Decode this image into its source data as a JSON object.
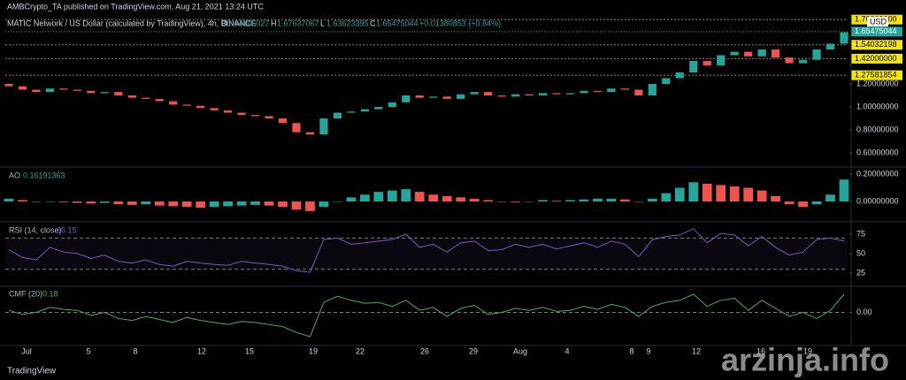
{
  "chart_data": {
    "type": "candlestick",
    "publisher": "AMBCrypto_TA published on TradingView.com, Aug 21, 2021 13:24 UTC",
    "symbol": "MATIC Network / US Dollar (calculated by TradingView), 4h, BINANCE",
    "ohlc_labels": [
      "O",
      "H",
      "L",
      "C"
    ],
    "ohlc_values": [
      "1.64145027",
      "1.67637067",
      "1.63623395",
      "1.65475044"
    ],
    "change": "+0.01380853 (+0.84%)",
    "currency": "USD",
    "x_labels": [
      "Jul",
      "5",
      "8",
      "12",
      "15",
      "19",
      "22",
      "26",
      "29",
      "Aug",
      "4",
      "8",
      "9",
      "12",
      "16",
      "19"
    ],
    "price": {
      "open": 1.2,
      "values": [
        1.18,
        1.15,
        1.13,
        1.16,
        1.15,
        1.14,
        1.12,
        1.13,
        1.1,
        1.08,
        1.07,
        1.05,
        1.02,
        1.01,
        0.99,
        0.97,
        0.95,
        0.93,
        0.92,
        0.9,
        0.86,
        0.78,
        0.76,
        0.9,
        0.95,
        0.96,
        0.98,
        1.0,
        1.04,
        1.1,
        1.08,
        1.09,
        1.07,
        1.11,
        1.13,
        1.1,
        1.09,
        1.11,
        1.1,
        1.12,
        1.11,
        1.12,
        1.14,
        1.13,
        1.16,
        1.15,
        1.1,
        1.2,
        1.25,
        1.3,
        1.4,
        1.36,
        1.45,
        1.48,
        1.44,
        1.5,
        1.43,
        1.38,
        1.41,
        1.5,
        1.55,
        1.65
      ],
      "up_color": "#26a69a",
      "down_color": "#ef5350",
      "ylim": [
        0.485,
        1.792
      ],
      "yticks": [
        {
          "value": 1.2,
          "label": "1.20000000"
        },
        {
          "value": 1.0,
          "label": "1.00000000"
        },
        {
          "value": 0.8,
          "label": "0.80000000"
        },
        {
          "value": 0.6,
          "label": "0.60000000"
        }
      ],
      "levels": [
        {
          "value": 1.76,
          "label": "1.76000000"
        },
        {
          "value": 1.54032198,
          "label": "1.54032198"
        },
        {
          "value": 1.42,
          "label": "1.42000000"
        },
        {
          "value": 1.27581854,
          "label": "1.27581854"
        }
      ],
      "level_color": "#f5e50a",
      "last": {
        "value": 1.65475044,
        "label": "1.65475044"
      }
    },
    "ao": {
      "name": "AO",
      "value_label": "0.16191363",
      "values": [
        0.02,
        0.01,
        0.0,
        0.0,
        -0.005,
        -0.01,
        -0.015,
        -0.01,
        -0.02,
        -0.025,
        -0.02,
        -0.03,
        -0.035,
        -0.04,
        -0.045,
        -0.04,
        -0.035,
        -0.03,
        -0.025,
        -0.03,
        -0.04,
        -0.06,
        -0.07,
        -0.04,
        0.0,
        0.03,
        0.05,
        0.07,
        0.08,
        0.09,
        0.07,
        0.05,
        0.04,
        0.03,
        0.02,
        0.01,
        0.0,
        -0.005,
        0.0,
        0.01,
        0.005,
        0.01,
        0.015,
        0.02,
        0.02,
        0.015,
        0.0,
        0.02,
        0.06,
        0.1,
        0.14,
        0.13,
        0.12,
        0.11,
        0.1,
        0.08,
        0.04,
        -0.02,
        -0.04,
        -0.02,
        0.05,
        0.16
      ],
      "up_color": "#26a69a",
      "down_color": "#ef5350",
      "ylim": [
        -0.142,
        0.245
      ],
      "yticks": [
        {
          "value": 0.2,
          "label": "0.20000000"
        },
        {
          "value": 0.0,
          "label": "0.00000000"
        }
      ]
    },
    "rsi": {
      "name": "RSI (14, close)",
      "value_label": "66.15",
      "color": "#7e57c2",
      "values": [
        55,
        45,
        42,
        58,
        52,
        50,
        44,
        48,
        40,
        38,
        42,
        36,
        34,
        40,
        38,
        36,
        35,
        40,
        38,
        36,
        34,
        28,
        26,
        68,
        70,
        62,
        64,
        66,
        68,
        75,
        58,
        62,
        52,
        64,
        66,
        54,
        55,
        62,
        58,
        62,
        56,
        60,
        64,
        58,
        66,
        62,
        46,
        68,
        72,
        74,
        82,
        64,
        76,
        74,
        60,
        72,
        58,
        48,
        52,
        68,
        70,
        66.15
      ],
      "ylim": [
        9.1,
        88.6
      ],
      "yticks": [
        75,
        50,
        25
      ],
      "band": [
        70,
        30
      ]
    },
    "cmf": {
      "name": "CMF (20)",
      "value_label": "0.18",
      "color": "#4caf50",
      "values": [
        0.02,
        -0.02,
        0.0,
        0.05,
        0.03,
        0.02,
        -0.03,
        0.0,
        -0.06,
        -0.08,
        -0.04,
        -0.07,
        -0.1,
        -0.05,
        -0.08,
        -0.1,
        -0.12,
        -0.09,
        -0.1,
        -0.12,
        -0.14,
        -0.2,
        -0.24,
        0.1,
        0.16,
        0.12,
        0.09,
        0.1,
        0.06,
        0.12,
        0.02,
        0.05,
        -0.04,
        0.04,
        0.07,
        -0.02,
        0.0,
        0.04,
        0.02,
        0.05,
        0.01,
        0.02,
        0.06,
        0.03,
        0.08,
        0.05,
        -0.04,
        0.06,
        0.1,
        0.12,
        0.18,
        0.06,
        0.12,
        0.14,
        0.02,
        0.12,
        0.04,
        -0.04,
        0.0,
        -0.06,
        0.02,
        0.18
      ],
      "ylim": [
        -0.32,
        0.25
      ],
      "yticks": [
        {
          "value": 0.0,
          "label": "0.00"
        }
      ]
    },
    "footer": "TradingView",
    "watermark": "arzinja.info"
  }
}
